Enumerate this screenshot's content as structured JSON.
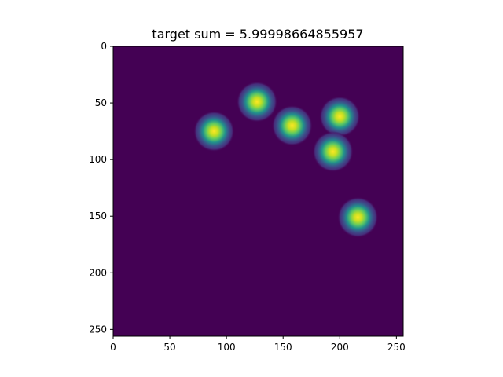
{
  "chart_data": {
    "type": "heatmap",
    "title": "target sum = 5.99998664855957",
    "xlabel": "",
    "ylabel": "",
    "xlim": [
      0,
      256
    ],
    "ylim": [
      256,
      0
    ],
    "x_ticks": [
      0,
      50,
      100,
      150,
      200,
      250
    ],
    "y_ticks": [
      0,
      50,
      100,
      150,
      200,
      250
    ],
    "grid": false,
    "colormap": "viridis",
    "background_color": "#440154",
    "peak_color": "#fde725",
    "blob_sigma": 6,
    "blobs": [
      {
        "x": 89,
        "y": 75
      },
      {
        "x": 127,
        "y": 49
      },
      {
        "x": 158,
        "y": 70
      },
      {
        "x": 200,
        "y": 62
      },
      {
        "x": 194,
        "y": 93
      },
      {
        "x": 216,
        "y": 151
      }
    ]
  }
}
